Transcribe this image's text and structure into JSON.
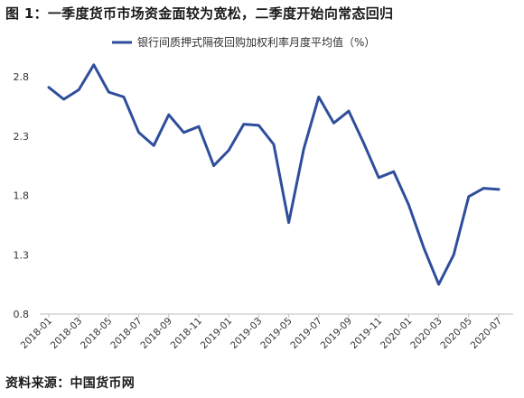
{
  "header": {
    "title": "图 1：一季度货币市场资金面较为宽松，二季度开始向常态回归"
  },
  "footer": {
    "source": "资料来源：中国货币网"
  },
  "chart_data": {
    "type": "line",
    "title": "",
    "xlabel": "",
    "ylabel": "",
    "legend_position": "top",
    "grid": false,
    "ylim": [
      0.8,
      2.8
    ],
    "yticks": [
      0.8,
      1.3,
      1.8,
      2.3,
      2.8
    ],
    "x": [
      "2018-01",
      "2018-02",
      "2018-03",
      "2018-04",
      "2018-05",
      "2018-06",
      "2018-07",
      "2018-08",
      "2018-09",
      "2018-10",
      "2018-11",
      "2018-12",
      "2019-01",
      "2019-02",
      "2019-03",
      "2019-04",
      "2019-05",
      "2019-06",
      "2019-07",
      "2019-08",
      "2019-09",
      "2019-10",
      "2019-11",
      "2019-12",
      "2020-01",
      "2020-02",
      "2020-03",
      "2020-04",
      "2020-05",
      "2020-06",
      "2020-07"
    ],
    "xtick_labels": [
      "2018-01",
      "2018-03",
      "2018-05",
      "2018-07",
      "2018-09",
      "2018-11",
      "2019-01",
      "2019-03",
      "2019-05",
      "2019-07",
      "2019-09",
      "2019-11",
      "2020-01",
      "2020-03",
      "2020-05",
      "2020-07"
    ],
    "series": [
      {
        "name": "银行间质押式隔夜回购加权利率月度平均值（%）",
        "color": "#2e4e9c",
        "values": [
          2.71,
          2.61,
          2.69,
          2.9,
          2.67,
          2.63,
          2.33,
          2.22,
          2.48,
          2.33,
          2.38,
          2.05,
          2.18,
          2.4,
          2.39,
          2.23,
          1.57,
          2.19,
          2.63,
          2.41,
          2.51,
          2.24,
          1.95,
          2.0,
          1.72,
          1.36,
          1.05,
          1.3,
          1.79,
          1.86,
          1.85
        ]
      }
    ]
  }
}
